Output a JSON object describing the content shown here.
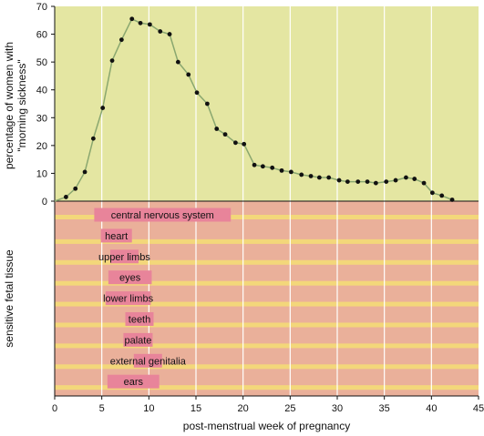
{
  "colors": {
    "upper_bg": "#e4e6a2",
    "lower_bg": "#eab09a",
    "stripe": "#f3d77a",
    "bar": "#e8849a",
    "line": "#8aa76f",
    "point": "#111111",
    "grid": "#ffffff"
  },
  "chart_data": [
    {
      "type": "line",
      "xlabel": "post-menstrual week of pregnancy",
      "ylabel": [
        "percentage of women with",
        "\"morning sickness\""
      ],
      "xlim": [
        0,
        45
      ],
      "ylim": [
        0,
        70
      ],
      "xticks": [
        "0",
        "5",
        "10",
        "15",
        "20",
        "25",
        "30",
        "35",
        "40",
        "45"
      ],
      "yticks": [
        "0",
        "10",
        "20",
        "30",
        "40",
        "50",
        "60",
        "70"
      ],
      "grid": "vertical",
      "series": [
        {
          "x": [
            0,
            1.2,
            2.2,
            3.2,
            4.1,
            5.1,
            6.1,
            7.1,
            8.2,
            9.1,
            10.1,
            11.2,
            12.2,
            13.1,
            14.2,
            15.1,
            16.2,
            17.2,
            18.1,
            19.2,
            20.1,
            21.2,
            22.1,
            23.1,
            24.1,
            25.1,
            26.2,
            27.2,
            28.1,
            29.1,
            30.2,
            31.1,
            32.2,
            33.2,
            34.1,
            35.2,
            36.2,
            37.3,
            38.2,
            39.2,
            40.1,
            41.1,
            42.2
          ],
          "y": [
            0,
            1.5,
            4.5,
            10.5,
            22.5,
            33.5,
            50.5,
            58,
            65.5,
            64,
            63.5,
            61,
            60,
            50,
            45.5,
            39,
            35,
            26,
            24,
            21,
            20.5,
            13,
            12.5,
            12,
            11,
            10.5,
            9.5,
            9,
            8.5,
            8.5,
            7.5,
            7,
            7,
            7,
            6.5,
            7,
            7.5,
            8.5,
            8,
            6.5,
            3,
            2,
            0.5
          ]
        }
      ]
    },
    {
      "type": "bar",
      "orientation": "horizontal",
      "ylabel": "sensitive fetal tissue",
      "categories": [
        "central nervous system",
        "heart",
        "upper limbs",
        "eyes",
        "lower limbs",
        "teeth",
        "palate",
        "external genitalia",
        "ears"
      ],
      "start": [
        4.2,
        4.9,
        5.9,
        5.7,
        5.4,
        7.5,
        7.3,
        8.4,
        5.6
      ],
      "end": [
        18.7,
        8.2,
        8.9,
        10.3,
        10.2,
        10.5,
        10.4,
        11.4,
        11.1
      ]
    }
  ]
}
